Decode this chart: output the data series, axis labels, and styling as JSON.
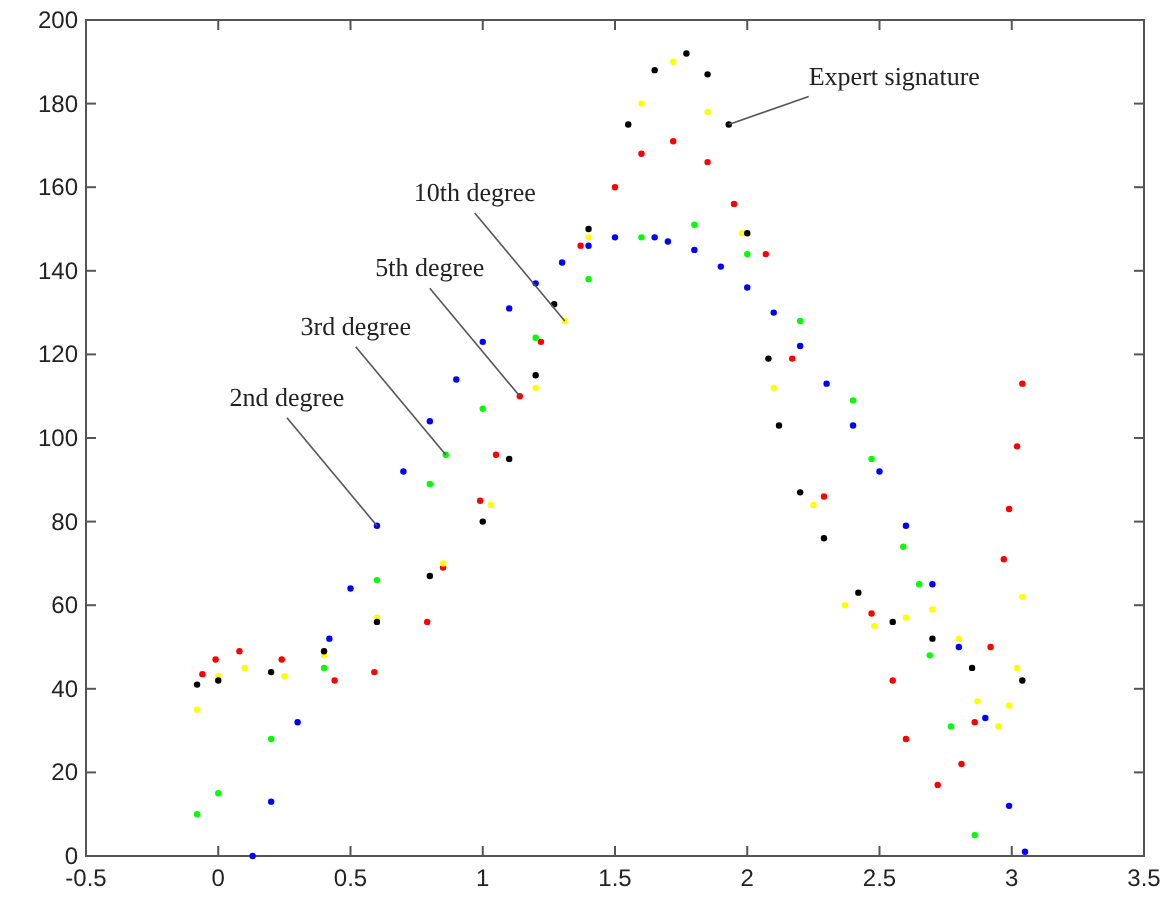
{
  "chart_data": {
    "type": "scatter",
    "marker": "circle",
    "grid": false,
    "xlim": [
      -0.5,
      3.5
    ],
    "xticks": [
      -0.5,
      0,
      0.5,
      1,
      1.5,
      2,
      2.5,
      3,
      3.5
    ],
    "ylim": [
      0,
      200
    ],
    "yticks": [
      0,
      20,
      40,
      60,
      80,
      100,
      120,
      140,
      160,
      180,
      200
    ],
    "series": [
      {
        "color": "#0000ff",
        "x": [
          0.13,
          0.2,
          0.3,
          0.42,
          0.5,
          0.6,
          0.7,
          0.8,
          0.9,
          1.0,
          1.1,
          1.2,
          1.3,
          1.4,
          1.5,
          1.65,
          1.7,
          1.8,
          1.9,
          2.0,
          2.1,
          2.2,
          2.3,
          2.4,
          2.5,
          2.6,
          2.7,
          2.8,
          2.9,
          2.99,
          3.05
        ],
        "values": [
          0,
          13,
          32,
          52,
          64,
          79,
          92,
          104,
          114,
          123,
          131,
          137,
          142,
          146,
          148,
          148,
          147,
          145,
          141,
          136,
          130,
          122,
          113,
          103,
          92,
          79,
          65,
          50,
          33,
          12,
          1
        ]
      },
      {
        "color": "#00ff00",
        "x": [
          -0.08,
          0,
          0.2,
          0.4,
          0.6,
          0.8,
          0.86,
          1.0,
          1.2,
          1.4,
          1.6,
          1.8,
          2.0,
          2.2,
          2.4,
          2.47,
          2.59,
          2.65,
          2.69,
          2.77,
          2.86
        ],
        "values": [
          10,
          15,
          28,
          45,
          66,
          89,
          96,
          107,
          124,
          138,
          148,
          151,
          144,
          128,
          109,
          95,
          74,
          65,
          48,
          31,
          5
        ]
      },
      {
        "color": "#ff0000",
        "x": [
          -0.06,
          -0.01,
          0.08,
          0.24,
          0.44,
          0.59,
          0.79,
          0.85,
          0.99,
          1.05,
          1.14,
          1.22,
          1.37,
          1.5,
          1.6,
          1.72,
          1.85,
          1.95,
          2.07,
          2.17,
          2.29,
          2.47,
          2.55,
          2.6,
          2.72,
          2.81,
          2.86,
          2.92,
          2.97,
          2.99,
          3.02,
          3.04
        ],
        "values": [
          43.5,
          47,
          49,
          47,
          42,
          44,
          56,
          69,
          85,
          96,
          110,
          123,
          146,
          160,
          168,
          171,
          166,
          156,
          144,
          119,
          86,
          58,
          42,
          28,
          17,
          22,
          32,
          50,
          71,
          83,
          98,
          113
        ]
      },
      {
        "color": "#ffff00",
        "x": [
          -0.08,
          0,
          0.1,
          0.25,
          0.4,
          0.6,
          0.85,
          1.03,
          1.2,
          1.31,
          1.4,
          1.6,
          1.72,
          1.85,
          1.98,
          2.1,
          2.25,
          2.37,
          2.48,
          2.6,
          2.7,
          2.8,
          2.87,
          2.95,
          2.99,
          3.02,
          3.04
        ],
        "values": [
          35,
          43,
          45,
          43,
          48,
          57,
          70,
          84,
          112,
          128,
          148,
          180,
          190,
          178,
          149,
          112,
          84,
          60,
          55,
          57,
          59,
          52,
          37,
          31,
          36,
          45,
          62
        ]
      },
      {
        "color": "#000000",
        "x": [
          -0.08,
          0,
          0.2,
          0.4,
          0.6,
          0.8,
          1.0,
          1.1,
          1.2,
          1.27,
          1.4,
          1.55,
          1.65,
          1.77,
          1.85,
          1.93,
          2.0,
          2.08,
          2.12,
          2.2,
          2.29,
          2.42,
          2.55,
          2.7,
          2.85,
          3.04
        ],
        "values": [
          41,
          42,
          44,
          49,
          56,
          67,
          80,
          95,
          115,
          132,
          150,
          175,
          188,
          192,
          187,
          175,
          149,
          119,
          103,
          87,
          76,
          63,
          56,
          52,
          45,
          42
        ]
      }
    ],
    "annotations": [
      {
        "text": "Expert signature",
        "x": 1.93,
        "y": 175
      },
      {
        "text": "10th degree",
        "x": 1.31,
        "y": 128
      },
      {
        "text": "5th degree",
        "x": 1.14,
        "y": 110
      },
      {
        "text": "3rd degree",
        "x": 0.86,
        "y": 96
      },
      {
        "text": "2nd degree",
        "x": 0.6,
        "y": 79
      }
    ]
  }
}
